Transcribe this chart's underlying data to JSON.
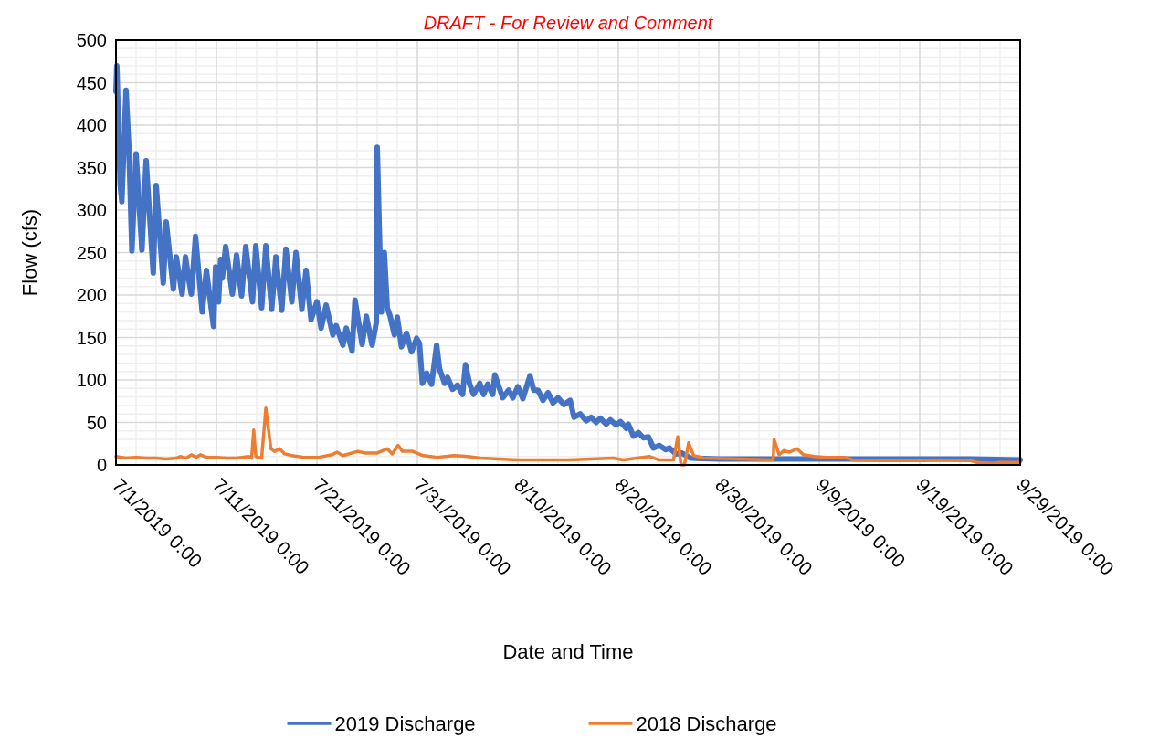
{
  "chart_data": {
    "type": "line",
    "title": "DRAFT - For Review and Comment",
    "xlabel": "Date and Time",
    "ylabel": "Flow (cfs)",
    "xlim": [
      "2019-07-01T00:00",
      "2019-09-29T00:00"
    ],
    "xticks": [
      {
        "value": "2019-07-01T00:00",
        "label": "7/1/2019 0:00"
      },
      {
        "value": "2019-07-11T00:00",
        "label": "7/11/2019 0:00"
      },
      {
        "value": "2019-07-21T00:00",
        "label": "7/21/2019 0:00"
      },
      {
        "value": "2019-07-31T00:00",
        "label": "7/31/2019 0:00"
      },
      {
        "value": "2019-08-10T00:00",
        "label": "8/10/2019 0:00"
      },
      {
        "value": "2019-08-20T00:00",
        "label": "8/20/2019 0:00"
      },
      {
        "value": "2019-08-30T00:00",
        "label": "8/30/2019 0:00"
      },
      {
        "value": "2019-09-09T00:00",
        "label": "9/9/2019 0:00"
      },
      {
        "value": "2019-09-19T00:00",
        "label": "9/19/2019 0:00"
      },
      {
        "value": "2019-09-29T00:00",
        "label": "9/29/2019 0:00"
      }
    ],
    "ylim": [
      0,
      500
    ],
    "yticks": [
      0,
      50,
      100,
      150,
      200,
      250,
      300,
      350,
      400,
      450,
      500
    ],
    "grid": true,
    "legend": "bottom",
    "marker": "none",
    "line_style": "solid",
    "series": [
      {
        "name": "2019 Discharge",
        "color": "#4472c4",
        "x": [
          "2019-07-01T00:00",
          "2019-07-01T02:00",
          "2019-07-01T10:00",
          "2019-07-01T14:00",
          "2019-07-02T00:00",
          "2019-07-02T07:00",
          "2019-07-02T14:00",
          "2019-07-03T00:00",
          "2019-07-03T14:00",
          "2019-07-04T00:00",
          "2019-07-04T17:00",
          "2019-07-05T00:00",
          "2019-07-05T17:00",
          "2019-07-06T00:00",
          "2019-07-06T17:00",
          "2019-07-07T00:00",
          "2019-07-07T14:00",
          "2019-07-07T22:00",
          "2019-07-08T05:00",
          "2019-07-08T12:00",
          "2019-07-08T22:00",
          "2019-07-09T14:00",
          "2019-07-10T00:00",
          "2019-07-10T17:00",
          "2019-07-10T22:00",
          "2019-07-11T05:00",
          "2019-07-11T10:00",
          "2019-07-11T14:00",
          "2019-07-11T22:00",
          "2019-07-12T14:00",
          "2019-07-13T00:00",
          "2019-07-13T12:00",
          "2019-07-13T22:00",
          "2019-07-14T14:00",
          "2019-07-14T22:00",
          "2019-07-15T12:00",
          "2019-07-15T22:00",
          "2019-07-16T12:00",
          "2019-07-16T22:00",
          "2019-07-17T12:00",
          "2019-07-17T22:00",
          "2019-07-18T12:00",
          "2019-07-18T22:00",
          "2019-07-19T12:00",
          "2019-07-19T22:00",
          "2019-07-20T10:00",
          "2019-07-21T00:00",
          "2019-07-21T10:00",
          "2019-07-21T22:00",
          "2019-07-22T14:00",
          "2019-07-22T22:00",
          "2019-07-23T14:00",
          "2019-07-23T22:00",
          "2019-07-24T12:00",
          "2019-07-24T19:00",
          "2019-07-25T12:00",
          "2019-07-25T22:00",
          "2019-07-26T12:00",
          "2019-07-26T22:00",
          "2019-07-27T00:00",
          "2019-07-27T10:00",
          "2019-07-27T17:00",
          "2019-07-28T00:00",
          "2019-07-28T07:00",
          "2019-07-28T17:00",
          "2019-07-29T00:00",
          "2019-07-29T10:00",
          "2019-07-29T22:00",
          "2019-07-30T10:00",
          "2019-07-30T22:00",
          "2019-07-31T05:00",
          "2019-07-31T12:00",
          "2019-07-31T22:00",
          "2019-08-01T10:00",
          "2019-08-01T22:00",
          "2019-08-02T05:00",
          "2019-08-02T17:00",
          "2019-08-03T00:00",
          "2019-08-03T12:00",
          "2019-08-04T00:00",
          "2019-08-04T12:00",
          "2019-08-04T19:00",
          "2019-08-05T05:00",
          "2019-08-05T14:00",
          "2019-08-06T05:00",
          "2019-08-06T14:00",
          "2019-08-07T00:00",
          "2019-08-07T12:00",
          "2019-08-07T17:00",
          "2019-08-08T12:00",
          "2019-08-09T02:00",
          "2019-08-09T12:00",
          "2019-08-10T00:00",
          "2019-08-10T12:00",
          "2019-08-11T05:00",
          "2019-08-11T14:00",
          "2019-08-12T00:00",
          "2019-08-12T12:00",
          "2019-08-13T00:00",
          "2019-08-13T12:00",
          "2019-08-14T00:00",
          "2019-08-14T14:00",
          "2019-08-15T05:00",
          "2019-08-15T14:00",
          "2019-08-16T05:00",
          "2019-08-16T19:00",
          "2019-08-17T07:00",
          "2019-08-17T19:00",
          "2019-08-18T05:00",
          "2019-08-18T19:00",
          "2019-08-19T05:00",
          "2019-08-19T19:00",
          "2019-08-20T05:00",
          "2019-08-20T19:00",
          "2019-08-21T00:00",
          "2019-08-21T12:00",
          "2019-08-22T00:00",
          "2019-08-22T12:00",
          "2019-08-23T00:00",
          "2019-08-23T12:00",
          "2019-08-24T02:00",
          "2019-08-24T17:00",
          "2019-08-25T02:00",
          "2019-08-25T17:00",
          "2019-08-26T07:00",
          "2019-08-27T05:00",
          "2019-08-30T00:00",
          "2019-09-04T00:00",
          "2019-09-09T00:00",
          "2019-09-14T00:00",
          "2019-09-19T00:00",
          "2019-09-24T00:00",
          "2019-09-29T00:00"
        ],
        "values": [
          440,
          470,
          330,
          310,
          441,
          371,
          252,
          366,
          253,
          358,
          226,
          329,
          214,
          286,
          207,
          245,
          201,
          245,
          221,
          201,
          269,
          180,
          229,
          163,
          233,
          192,
          242,
          220,
          257,
          201,
          247,
          199,
          257,
          192,
          258,
          185,
          258,
          183,
          245,
          182,
          254,
          192,
          250,
          183,
          229,
          171,
          192,
          161,
          188,
          153,
          164,
          141,
          161,
          134,
          194,
          142,
          175,
          141,
          168,
          374,
          180,
          250,
          185,
          175,
          153,
          174,
          139,
          155,
          133,
          149,
          143,
          96,
          108,
          95,
          141,
          113,
          96,
          103,
          89,
          94,
          83,
          118,
          95,
          83,
          96,
          83,
          95,
          83,
          106,
          79,
          88,
          79,
          92,
          78,
          105,
          88,
          88,
          76,
          85,
          73,
          79,
          71,
          76,
          56,
          60,
          52,
          56,
          50,
          55,
          48,
          53,
          47,
          51,
          43,
          48,
          34,
          38,
          32,
          33,
          20,
          23,
          18,
          20,
          13,
          14,
          8,
          7,
          7,
          7,
          7,
          7,
          7,
          6
        ]
      },
      {
        "name": "2018 Discharge",
        "color": "#ed7d31",
        "x": [
          "2019-07-01T00:00",
          "2019-07-02T00:00",
          "2019-07-03T00:00",
          "2019-07-04T00:00",
          "2019-07-05T00:00",
          "2019-07-06T00:00",
          "2019-07-07T00:00",
          "2019-07-07T10:00",
          "2019-07-08T00:00",
          "2019-07-08T12:00",
          "2019-07-09T00:00",
          "2019-07-09T10:00",
          "2019-07-10T00:00",
          "2019-07-11T00:00",
          "2019-07-12T00:00",
          "2019-07-13T00:00",
          "2019-07-14T05:00",
          "2019-07-14T12:00",
          "2019-07-14T17:00",
          "2019-07-14T22:00",
          "2019-07-15T12:00",
          "2019-07-15T22:00",
          "2019-07-16T10:00",
          "2019-07-16T19:00",
          "2019-07-17T07:00",
          "2019-07-17T19:00",
          "2019-07-18T12:00",
          "2019-07-19T17:00",
          "2019-07-21T05:00",
          "2019-07-22T12:00",
          "2019-07-23T00:00",
          "2019-07-23T14:00",
          "2019-07-25T02:00",
          "2019-07-25T19:00",
          "2019-07-27T00:00",
          "2019-07-28T00:00",
          "2019-07-28T12:00",
          "2019-07-29T02:00",
          "2019-07-29T12:00",
          "2019-07-30T12:00",
          "2019-07-31T14:00",
          "2019-08-02T00:00",
          "2019-08-03T14:00",
          "2019-08-05T00:00",
          "2019-08-06T07:00",
          "2019-08-08T02:00",
          "2019-08-10T00:00",
          "2019-08-15T00:00",
          "2019-08-19T12:00",
          "2019-08-20T12:00",
          "2019-08-23T02:00",
          "2019-08-24T00:00",
          "2019-08-25T12:00",
          "2019-08-25T22:00",
          "2019-08-26T05:00",
          "2019-08-26T07:00",
          "2019-08-26T14:00",
          "2019-08-27T00:00",
          "2019-08-27T12:00",
          "2019-08-28T12:00",
          "2019-09-01T00:00",
          "2019-09-04T10:00",
          "2019-09-04T12:00",
          "2019-09-05T00:00",
          "2019-09-05T12:00",
          "2019-09-06T00:00",
          "2019-09-06T19:00",
          "2019-09-07T10:00",
          "2019-09-08T12:00",
          "2019-09-09T17:00",
          "2019-09-11T12:00",
          "2019-09-12T07:00",
          "2019-09-15T00:00",
          "2019-09-19T12:00",
          "2019-09-20T07:00",
          "2019-09-24T02:00",
          "2019-09-24T17:00",
          "2019-09-26T05:00",
          "2019-09-27T00:00",
          "2019-09-29T00:00"
        ],
        "values": [
          10,
          8,
          9,
          8,
          8,
          7,
          8,
          10,
          8,
          12,
          9,
          12,
          9,
          9,
          8,
          8,
          10,
          8,
          41,
          10,
          8,
          67,
          19,
          16,
          19,
          13,
          11,
          9,
          9,
          12,
          15,
          11,
          16,
          14,
          14,
          19,
          13,
          23,
          16,
          16,
          11,
          9,
          11,
          10,
          8,
          7,
          6,
          6,
          8,
          6,
          10,
          6,
          6,
          33,
          3,
          0,
          0,
          26,
          11,
          8,
          7,
          6,
          30,
          12,
          17,
          15,
          19,
          12,
          10,
          9,
          9,
          6,
          5,
          5,
          6,
          5,
          3,
          2,
          3,
          3
        ]
      }
    ]
  }
}
